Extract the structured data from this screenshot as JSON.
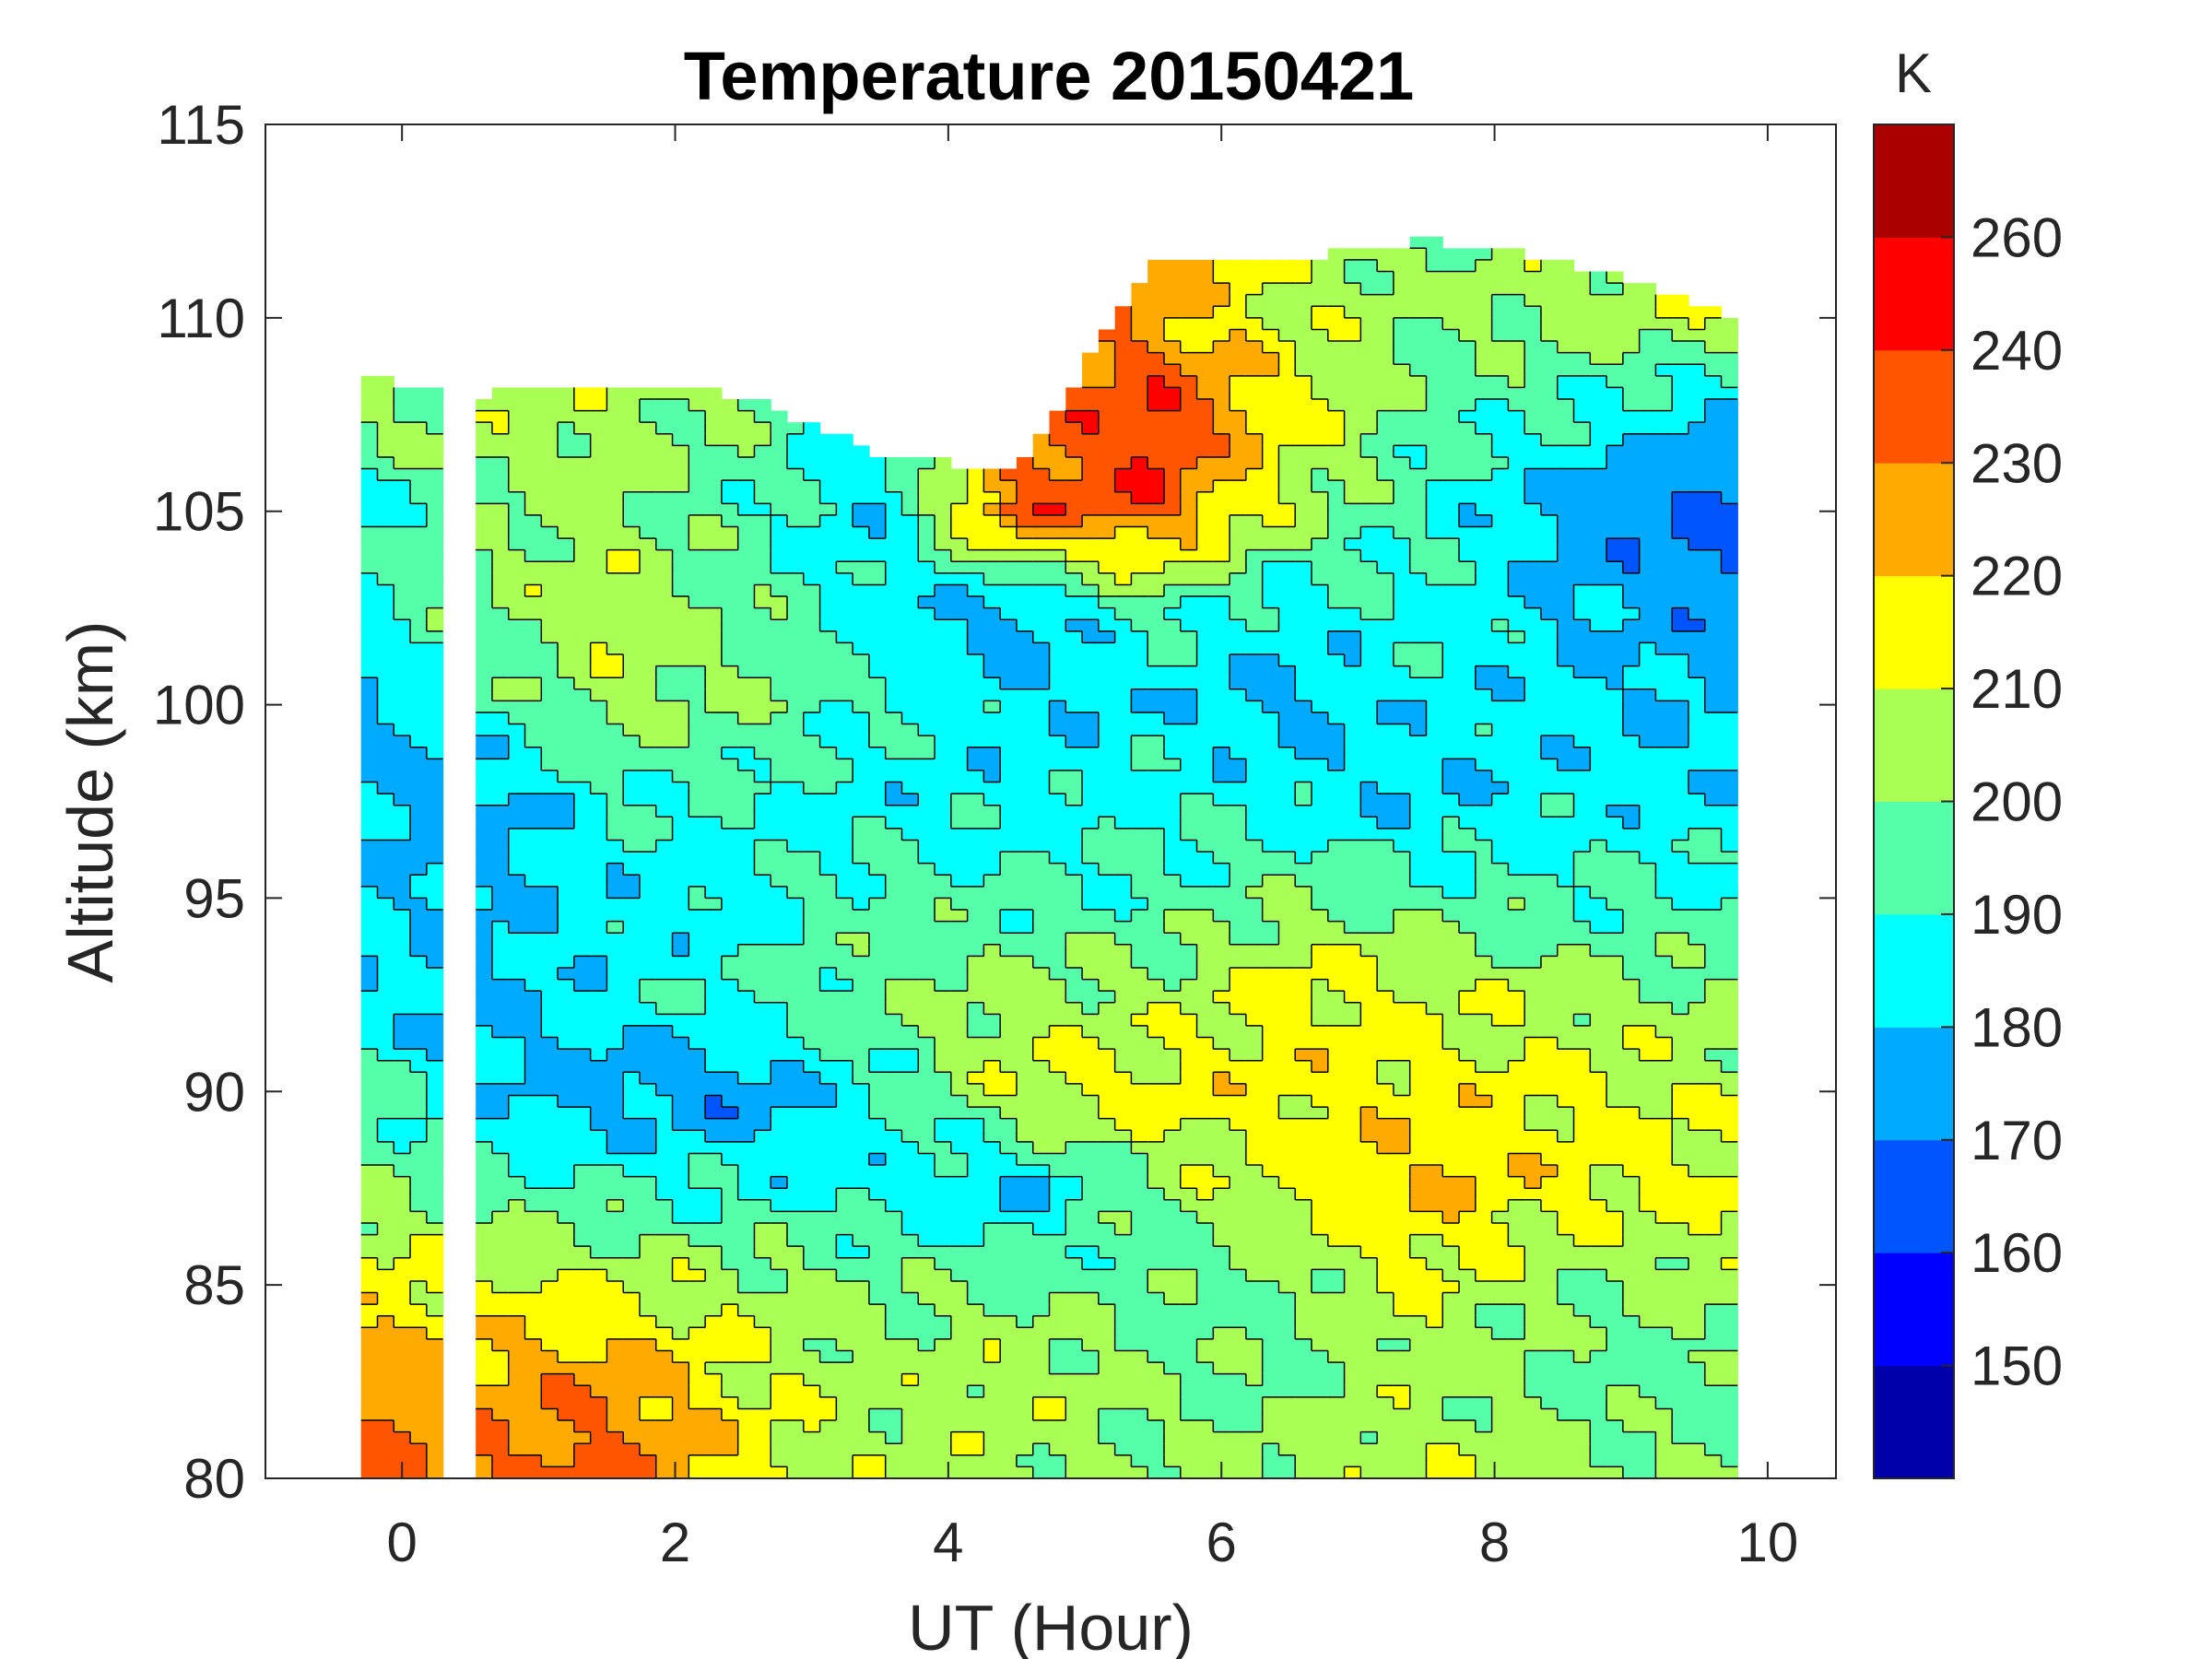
{
  "chart_data": {
    "type": "heatmap",
    "subtype": "filled-contour",
    "title": "Temperature 20150421",
    "xlabel": "UT (Hour)",
    "ylabel": "Altitude (km)",
    "colorbar_label": "K",
    "xlim": [
      -1,
      10.5
    ],
    "ylim": [
      80,
      115
    ],
    "xticks": [
      "0",
      "2",
      "4",
      "6",
      "8",
      "10"
    ],
    "yticks": [
      "80",
      "85",
      "90",
      "95",
      "100",
      "105",
      "110",
      "115"
    ],
    "levels": [
      150,
      160,
      170,
      180,
      190,
      200,
      210,
      220,
      230,
      240,
      260
    ],
    "colorbar_ticks": [
      "150",
      "160",
      "170",
      "180",
      "190",
      "200",
      "210",
      "220",
      "230",
      "240",
      "260"
    ],
    "colors": [
      "#0000aa",
      "#0000ff",
      "#0055ff",
      "#00aaff",
      "#00ffff",
      "#55ffaa",
      "#aaff55",
      "#ffff00",
      "#ffaa00",
      "#ff5500",
      "#ff0000",
      "#aa0000"
    ],
    "data_gap_hours": [
      0.3,
      0.5
    ],
    "x": [
      -0.3,
      0.5,
      1.5,
      2.5,
      3.5,
      4.5,
      5.5,
      6.5,
      7.5,
      8.5,
      9.8
    ],
    "top_altitude_km": [
      108.5,
      108,
      108.3,
      108,
      106.5,
      106,
      111.5,
      111.5,
      112,
      111.5,
      110
    ],
    "y": [
      80,
      82.5,
      85,
      87.5,
      90,
      92.5,
      95,
      97.5,
      100,
      102.5,
      105,
      107.5,
      110
    ],
    "z": [
      [
        235,
        232,
        235,
        215,
        205,
        205,
        200,
        205,
        210,
        205,
        200
      ],
      [
        228,
        222,
        228,
        212,
        203,
        208,
        200,
        198,
        205,
        197,
        195
      ],
      [
        215,
        212,
        210,
        205,
        200,
        198,
        195,
        200,
        212,
        200,
        205
      ],
      [
        200,
        195,
        192,
        188,
        185,
        178,
        200,
        212,
        222,
        215,
        212
      ],
      [
        195,
        180,
        175,
        172,
        190,
        210,
        215,
        215,
        215,
        212,
        208
      ],
      [
        182,
        178,
        185,
        192,
        198,
        205,
        203,
        215,
        210,
        205,
        200
      ],
      [
        182,
        178,
        183,
        185,
        195,
        192,
        192,
        200,
        195,
        192,
        190
      ],
      [
        180,
        172,
        190,
        190,
        185,
        185,
        190,
        185,
        180,
        185,
        183
      ],
      [
        175,
        190,
        205,
        200,
        190,
        182,
        182,
        178,
        185,
        183,
        178
      ],
      [
        188,
        200,
        208,
        198,
        185,
        175,
        195,
        185,
        190,
        180,
        172
      ],
      [
        185,
        198,
        205,
        192,
        182,
        235,
        235,
        205,
        190,
        175,
        165
      ],
      [
        200,
        205,
        205,
        200,
        null,
        228,
        242,
        215,
        195,
        190,
        178
      ],
      [
        null,
        null,
        null,
        null,
        null,
        null,
        225,
        210,
        200,
        205,
        208
      ]
    ]
  }
}
